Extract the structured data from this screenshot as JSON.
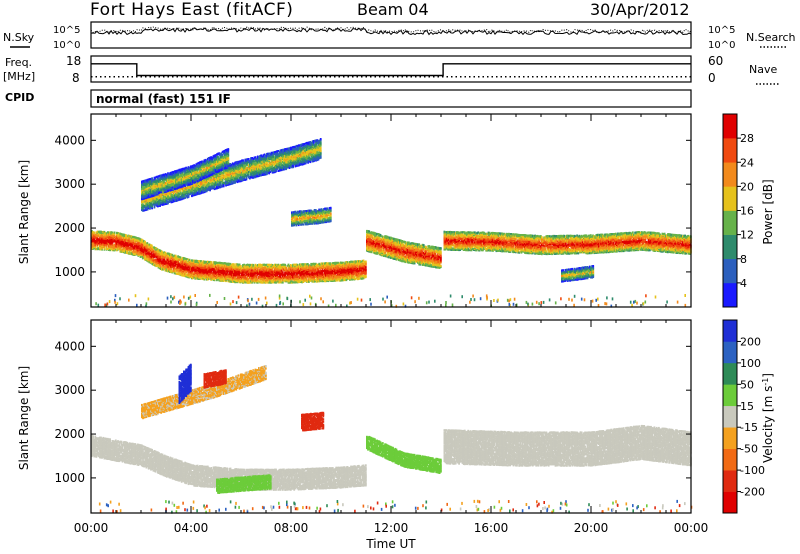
{
  "header": {
    "station": "Fort Hays East (fitACF)",
    "beam": "Beam 04",
    "date": "30/Apr/2012"
  },
  "left_labels": {
    "nsky": "N.Sky",
    "freq": "Freq.",
    "mhz": "[MHz]",
    "cpid": "CPID"
  },
  "right_labels": {
    "nsearch": "N.Search",
    "nave": "Nave"
  },
  "cpid_text": "normal (fast) 151 IF",
  "noise_panel": {
    "top_tick": "10^5",
    "bottom_tick": "10^0"
  },
  "freq_panel": {
    "left_ticks": [
      "18",
      "8"
    ],
    "right_ticks": [
      "60",
      "0"
    ],
    "freq_segments": [
      {
        "start": "00:00",
        "end": "01:50",
        "value": 15
      },
      {
        "start": "01:50",
        "end": "14:05",
        "value": 10.5
      },
      {
        "start": "14:05",
        "end": "24:00",
        "value": 15
      }
    ],
    "nave_value": 12
  },
  "time_axis": {
    "label": "Time UT",
    "ticks": [
      "00:00",
      "04:00",
      "08:00",
      "12:00",
      "16:00",
      "20:00",
      "00:00"
    ]
  },
  "chart_data": [
    {
      "type": "heatmap",
      "name": "power",
      "xlabel": "Time UT",
      "ylabel": "Slant Range [km]",
      "xlim": [
        0,
        24
      ],
      "ylim": [
        200,
        4600
      ],
      "y_ticks": [
        1000,
        2000,
        3000,
        4000
      ],
      "colorbar": {
        "label": "Power [dB]",
        "ticks": [
          4,
          8,
          12,
          16,
          20,
          24,
          28
        ],
        "colors": [
          "#1a1aff",
          "#2b5fbd",
          "#2e8b6c",
          "#66b24a",
          "#e6c21c",
          "#f28a1c",
          "#f04a10",
          "#e00000"
        ]
      },
      "echo_bands": [
        {
          "points": [
            [
              0,
              1720
            ],
            [
              1,
              1680
            ],
            [
              1.9,
              1550
            ],
            [
              2.8,
              1250
            ],
            [
              4,
              1050
            ],
            [
              6,
              950
            ],
            [
              8,
              950
            ],
            [
              10,
              1000
            ],
            [
              11,
              1050
            ]
          ],
          "width": 200,
          "level": 22
        },
        {
          "points": [
            [
              11,
              1700
            ],
            [
              12.5,
              1450
            ],
            [
              14,
              1300
            ]
          ],
          "width": 220,
          "level": 20
        },
        {
          "points": [
            [
              14.1,
              1700
            ],
            [
              16,
              1680
            ],
            [
              18,
              1600
            ],
            [
              20,
              1620
            ],
            [
              22,
              1700
            ],
            [
              24,
              1600
            ]
          ],
          "width": 200,
          "level": 20
        },
        {
          "points": [
            [
              2,
              2600
            ],
            [
              4,
              2950
            ],
            [
              6,
              3300
            ],
            [
              8,
              3600
            ],
            [
              9.2,
              3800
            ]
          ],
          "width": 220,
          "level": 10
        },
        {
          "points": [
            [
              2,
              2850
            ],
            [
              4,
              3200
            ],
            [
              5.5,
              3600
            ]
          ],
          "width": 200,
          "level": 9
        },
        {
          "points": [
            [
              8,
              2200
            ],
            [
              9,
              2250
            ],
            [
              9.6,
              2300
            ]
          ],
          "width": 150,
          "level": 12
        },
        {
          "points": [
            [
              18.8,
              900
            ],
            [
              19.5,
              950
            ],
            [
              20.1,
              1000
            ]
          ],
          "width": 120,
          "level": 10
        }
      ]
    },
    {
      "type": "heatmap",
      "name": "velocity",
      "xlabel": "Time UT",
      "ylabel": "Slant Range [km]",
      "xlim": [
        0,
        24
      ],
      "ylim": [
        200,
        4600
      ],
      "y_ticks": [
        1000,
        2000,
        3000,
        4000
      ],
      "colorbar": {
        "label": "Velocity [m s^-1]",
        "ticks": [
          "200",
          "100",
          "50",
          "15",
          "-15",
          "-50",
          "-100",
          "-200"
        ],
        "colors": [
          "#1f2fd6",
          "#2c62c2",
          "#2e8b57",
          "#6ccc3a",
          "#c9c9bd",
          "#f4a11f",
          "#f16a14",
          "#e02a10",
          "#e00000"
        ]
      },
      "echo_bands": [
        {
          "points": [
            [
              0,
              1720
            ],
            [
              2,
              1500
            ],
            [
              3,
              1250
            ],
            [
              4,
              1050
            ],
            [
              6,
              950
            ],
            [
              8,
              950
            ],
            [
              10,
              1000
            ],
            [
              11,
              1050
            ]
          ],
          "width": 220,
          "value": 0
        },
        {
          "points": [
            [
              14.1,
              1700
            ],
            [
              17,
              1650
            ],
            [
              20,
              1650
            ],
            [
              22,
              1800
            ],
            [
              24,
              1650
            ]
          ],
          "width": 380,
          "value": 0
        },
        {
          "points": [
            [
              2,
              2500
            ],
            [
              5,
              3000
            ],
            [
              7,
              3400
            ]
          ],
          "width": 150,
          "value": -20
        },
        {
          "points": [
            [
              11,
              1800
            ],
            [
              12.5,
              1400
            ],
            [
              14,
              1250
            ]
          ],
          "width": 150,
          "value": 30
        },
        {
          "points": [
            [
              8.4,
              2250
            ],
            [
              9.3,
              2300
            ]
          ],
          "width": 180,
          "value": -180
        },
        {
          "points": [
            [
              3.5,
              3000
            ],
            [
              4,
              3300
            ]
          ],
          "width": 300,
          "value": 220
        },
        {
          "points": [
            [
              4.5,
              3200
            ],
            [
              5.4,
              3300
            ]
          ],
          "width": 150,
          "value": -120
        },
        {
          "points": [
            [
              5,
              800
            ],
            [
              6,
              850
            ],
            [
              7.2,
              900
            ]
          ],
          "width": 150,
          "value": 40
        }
      ]
    }
  ]
}
